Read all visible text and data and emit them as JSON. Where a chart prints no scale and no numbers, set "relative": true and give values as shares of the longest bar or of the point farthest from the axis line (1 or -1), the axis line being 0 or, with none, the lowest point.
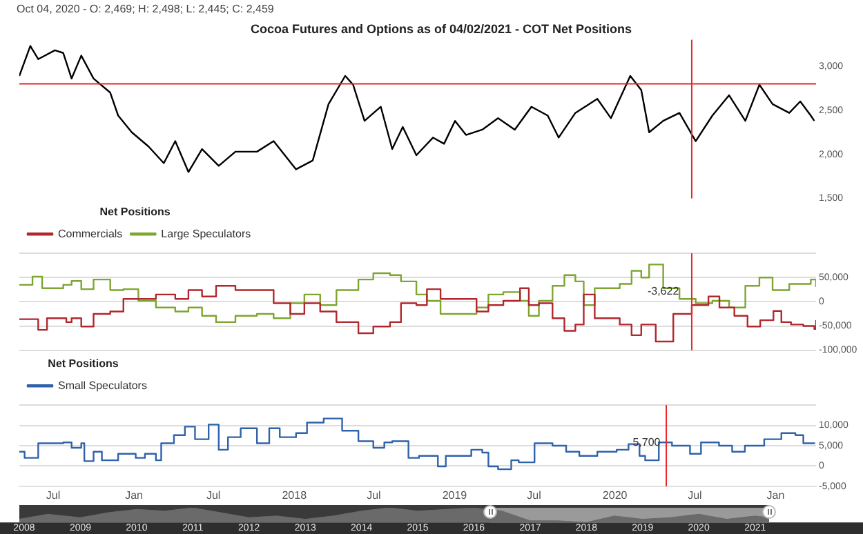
{
  "chart_data": [
    {
      "type": "line",
      "title": "Cocoa Futures and Options as of 04/02/2021 - COT Net Positions",
      "annotations": [
        "Oct 04, 2020 - O: 2,469; H: 2,498; L: 2,445; C: 2,459"
      ],
      "x": [
        "2016-04-15",
        "2016-05-10",
        "2016-05-28",
        "2016-07-05",
        "2016-07-24",
        "2016-08-12",
        "2016-09-03",
        "2016-10-01",
        "2016-11-08",
        "2016-11-26",
        "2016-12-27",
        "2017-02-03",
        "2017-03-10",
        "2017-04-05",
        "2017-05-05",
        "2017-06-05",
        "2017-07-13",
        "2017-08-20",
        "2017-10-08",
        "2017-11-15",
        "2018-01-05",
        "2018-02-12",
        "2018-03-20",
        "2018-04-27",
        "2018-05-15",
        "2018-06-10",
        "2018-07-17",
        "2018-08-12",
        "2018-09-05",
        "2018-10-06",
        "2018-11-13",
        "2018-12-08",
        "2019-01-02",
        "2019-01-27",
        "2019-03-05",
        "2019-04-10",
        "2019-05-18",
        "2019-06-25",
        "2019-08-01",
        "2019-08-26",
        "2019-10-03",
        "2019-11-22",
        "2019-12-23",
        "2020-02-05",
        "2020-03-01",
        "2020-03-19",
        "2020-04-20",
        "2020-05-27",
        "2020-07-03",
        "2020-08-10",
        "2020-09-17",
        "2020-10-24",
        "2020-11-25",
        "2020-12-25",
        "2021-02-01",
        "2021-02-26",
        "2021-03-22",
        "2021-03-30"
      ],
      "series": [
        {
          "color": "#000000",
          "values": [
            2890,
            3230,
            3080,
            3180,
            3150,
            2860,
            3120,
            2860,
            2700,
            2440,
            2250,
            2090,
            1900,
            2150,
            1800,
            2060,
            1870,
            2030,
            2030,
            2150,
            1830,
            1930,
            2570,
            2890,
            2790,
            2380,
            2540,
            2060,
            2310,
            1990,
            2190,
            2120,
            2380,
            2220,
            2280,
            2410,
            2280,
            2540,
            2440,
            2190,
            2470,
            2630,
            2410,
            2890,
            2730,
            2250,
            2380,
            2470,
            2150,
            2440,
            2670,
            2380,
            2790,
            2570,
            2470,
            2600,
            2440,
            2380
          ]
        }
      ],
      "xlim": [
        "2016-04-15",
        "2021-04-03"
      ],
      "ylim": [
        1500,
        3300
      ],
      "yticks": [
        {
          "value": 1500,
          "label": "1,500"
        },
        {
          "value": 2000,
          "label": "2,000"
        },
        {
          "value": 2500,
          "label": "2,500"
        },
        {
          "value": 3000,
          "label": "3,000"
        }
      ],
      "tick_labels": "y",
      "grid": false,
      "legend": false,
      "ref_lines": [
        {
          "axis": "y",
          "value": 2800,
          "color": "#e8262b"
        },
        {
          "axis": "x",
          "value": "2020-06-24",
          "color": "#e8262b"
        }
      ]
    },
    {
      "type": "step",
      "legend_title": "Net Positions",
      "legend": "top left",
      "grid": "y",
      "tick_labels": "y",
      "series": [
        {
          "name": "Commercials",
          "color": "#b1272d",
          "x": [
            "2016-04-15",
            "2016-05-28",
            "2016-06-17",
            "2016-07-31",
            "2016-08-12",
            "2016-09-03",
            "2016-10-01",
            "2016-11-08",
            "2016-12-08",
            "2017-01-11",
            "2017-02-20",
            "2017-04-05",
            "2017-05-05",
            "2017-06-05",
            "2017-07-07",
            "2017-08-20",
            "2017-10-08",
            "2017-11-15",
            "2017-12-23",
            "2018-01-24",
            "2018-03-01",
            "2018-04-07",
            "2018-05-27",
            "2018-06-30",
            "2018-08-07",
            "2018-09-01",
            "2018-10-06",
            "2018-10-30",
            "2018-11-30",
            "2019-02-20",
            "2019-03-19",
            "2019-04-22",
            "2019-05-30",
            "2019-06-19",
            "2019-07-12",
            "2019-08-12",
            "2019-09-08",
            "2019-10-03",
            "2019-10-22",
            "2019-11-16",
            "2020-01-12",
            "2020-02-08",
            "2020-03-01",
            "2020-04-03",
            "2020-05-13",
            "2020-06-24",
            "2020-08-01",
            "2020-08-26",
            "2020-09-29",
            "2020-10-29",
            "2020-11-27",
            "2020-12-27",
            "2021-01-14",
            "2021-02-05",
            "2021-03-05",
            "2021-03-30",
            "2021-04-03"
          ],
          "values": [
            -36000,
            -58000,
            -34000,
            -42000,
            -34000,
            -51000,
            -25000,
            -20000,
            6000,
            6000,
            15000,
            6000,
            24000,
            11000,
            33000,
            24000,
            24000,
            -3000,
            -25000,
            -3000,
            -20000,
            -42000,
            -65000,
            -51000,
            -42000,
            -3000,
            -7000,
            26000,
            6000,
            -20000,
            -7000,
            2000,
            28000,
            -7000,
            -3000,
            -34000,
            -60000,
            -47000,
            15000,
            -34000,
            -47000,
            -69000,
            -47000,
            -82000,
            -25000,
            -7000,
            11000,
            -12000,
            -29000,
            -51000,
            -38000,
            -19000,
            -42000,
            -47000,
            -50000,
            -56000,
            -38000
          ]
        },
        {
          "name": "Large Speculators",
          "color": "#7ea52f",
          "x": [
            "2016-04-15",
            "2016-05-15",
            "2016-06-06",
            "2016-07-24",
            "2016-08-12",
            "2016-09-03",
            "2016-10-01",
            "2016-11-08",
            "2016-12-08",
            "2017-01-11",
            "2017-02-20",
            "2017-04-05",
            "2017-05-05",
            "2017-06-05",
            "2017-07-07",
            "2017-08-20",
            "2017-10-08",
            "2017-11-15",
            "2017-12-23",
            "2018-01-24",
            "2018-03-01",
            "2018-04-07",
            "2018-05-27",
            "2018-06-30",
            "2018-08-07",
            "2018-09-01",
            "2018-10-06",
            "2018-10-30",
            "2018-11-30",
            "2019-02-20",
            "2019-03-19",
            "2019-04-22",
            "2019-05-30",
            "2019-06-19",
            "2019-07-12",
            "2019-08-12",
            "2019-09-08",
            "2019-10-03",
            "2019-10-22",
            "2019-11-16",
            "2020-01-12",
            "2020-02-08",
            "2020-03-01",
            "2020-03-19",
            "2020-04-20",
            "2020-05-27",
            "2020-07-03",
            "2020-08-10",
            "2020-09-17",
            "2020-10-24",
            "2020-11-25",
            "2020-12-25",
            "2021-02-01",
            "2021-03-22",
            "2021-04-03"
          ],
          "values": [
            35000,
            52000,
            28000,
            35000,
            43000,
            26000,
            46000,
            24000,
            26000,
            2000,
            -12000,
            -20000,
            -12000,
            -29000,
            -42000,
            -29000,
            -25000,
            -34000,
            -3000,
            15000,
            -7000,
            24000,
            46000,
            59000,
            55000,
            42000,
            15000,
            2000,
            -25000,
            -12000,
            15000,
            20000,
            2000,
            -29000,
            2000,
            33000,
            55000,
            42000,
            -7000,
            28000,
            37000,
            64000,
            50000,
            77000,
            28000,
            6000,
            -3000,
            2000,
            -12000,
            33000,
            50000,
            24000,
            37000,
            46000,
            31000
          ]
        }
      ],
      "xlim": [
        "2016-04-15",
        "2021-04-03"
      ],
      "ylim": [
        -100000,
        100000
      ],
      "yticks": [
        {
          "value": -100000,
          "label": "-100,000"
        },
        {
          "value": -50000,
          "label": "-50,000"
        },
        {
          "value": 0,
          "label": "0"
        },
        {
          "value": 50000,
          "label": "50,000"
        },
        {
          "value": 100000,
          "label": null
        }
      ],
      "annotations": [
        {
          "text": "-3,622",
          "x": "2020-04-20",
          "y": 21000
        }
      ],
      "ref_lines": [
        {
          "axis": "x",
          "value": "2020-06-24",
          "color": "#e8262b"
        }
      ]
    },
    {
      "type": "step",
      "legend_title": "Net Positions",
      "legend": "top left",
      "grid": "y",
      "x": [
        "2016-04-15",
        "2016-04-27",
        "2016-05-28",
        "2016-07-24",
        "2016-08-12",
        "2016-09-03",
        "2016-09-10",
        "2016-10-01",
        "2016-10-20",
        "2016-11-26",
        "2017-01-05",
        "2017-01-26",
        "2017-02-20",
        "2017-03-04",
        "2017-04-02",
        "2017-04-27",
        "2017-05-20",
        "2017-06-20",
        "2017-07-13",
        "2017-08-03",
        "2017-09-01",
        "2017-10-08",
        "2017-11-05",
        "2017-11-29",
        "2018-01-05",
        "2018-01-30",
        "2018-03-09",
        "2018-04-20",
        "2018-05-27",
        "2018-06-30",
        "2018-07-25",
        "2018-08-12",
        "2018-09-18",
        "2018-10-12",
        "2018-11-24",
        "2018-12-12",
        "2019-02-08",
        "2019-03-05",
        "2019-03-19",
        "2019-04-10",
        "2019-05-10",
        "2019-05-27",
        "2019-07-02",
        "2019-08-12",
        "2019-09-12",
        "2019-10-12",
        "2019-11-22",
        "2020-01-05",
        "2020-02-01",
        "2020-02-26",
        "2020-03-10",
        "2020-04-10",
        "2020-05-10",
        "2020-06-20",
        "2020-07-15",
        "2020-08-25",
        "2020-09-24",
        "2020-10-23",
        "2020-12-06",
        "2021-01-14",
        "2021-02-15",
        "2021-03-05",
        "2021-03-30"
      ],
      "series": [
        {
          "name": "Small Speculators",
          "color": "#2f62ab",
          "values": [
            3500,
            2000,
            5600,
            5800,
            4500,
            5600,
            1200,
            3500,
            1400,
            3000,
            2000,
            3000,
            1400,
            5600,
            7600,
            9700,
            6600,
            10200,
            4000,
            7100,
            9300,
            5600,
            9300,
            7100,
            8100,
            10700,
            11700,
            8700,
            6100,
            4500,
            5800,
            6100,
            2000,
            2500,
            -100,
            2500,
            4000,
            3300,
            -100,
            -800,
            1400,
            900,
            5600,
            5000,
            3500,
            2500,
            3500,
            4000,
            5400,
            2500,
            1400,
            5800,
            5000,
            3000,
            5800,
            5000,
            3500,
            5000,
            6600,
            8100,
            7600,
            5600,
            5800
          ]
        }
      ],
      "xlim": [
        "2016-04-15",
        "2021-04-03"
      ],
      "ylim": [
        -5000,
        15000
      ],
      "xticks": [
        {
          "value": "2016-07-01",
          "label": "Jul"
        },
        {
          "value": "2017-01-01",
          "label": "Jan"
        },
        {
          "value": "2017-07-01",
          "label": "Jul"
        },
        {
          "value": "2018-01-01",
          "label": "2018"
        },
        {
          "value": "2018-07-01",
          "label": "Jul"
        },
        {
          "value": "2019-01-01",
          "label": "2019"
        },
        {
          "value": "2019-07-01",
          "label": "Jul"
        },
        {
          "value": "2020-01-01",
          "label": "2020"
        },
        {
          "value": "2020-07-01",
          "label": "Jul"
        },
        {
          "value": "2021-01-01",
          "label": "Jan"
        }
      ],
      "yticks": [
        {
          "value": -5000,
          "label": "-5,000"
        },
        {
          "value": 0,
          "label": "0"
        },
        {
          "value": 5000,
          "label": "5,000"
        },
        {
          "value": 10000,
          "label": "10,000"
        },
        {
          "value": 15000,
          "label": null
        }
      ],
      "annotations": [
        {
          "text": "5,700",
          "x": "2020-03-13",
          "y": 5700
        }
      ],
      "ref_lines": [
        {
          "axis": "x",
          "value": "2020-04-27",
          "color": "#e8262b"
        }
      ]
    },
    {
      "type": "area",
      "relative": true,
      "tick_labels": "x",
      "legend": false,
      "grid": false,
      "x": [
        "2007-12-01",
        "2008-06-01",
        "2009-01-01",
        "2009-07-01",
        "2010-01-01",
        "2010-07-01",
        "2011-01-01",
        "2011-07-01",
        "2012-01-01",
        "2012-07-01",
        "2013-01-01",
        "2013-07-01",
        "2014-01-01",
        "2014-07-01",
        "2015-01-01",
        "2015-07-01",
        "2016-01-01",
        "2016-07-01",
        "2017-01-01",
        "2017-07-01",
        "2018-01-01",
        "2018-07-01",
        "2019-01-01",
        "2019-07-01",
        "2020-01-01",
        "2020-07-01",
        "2021-01-01",
        "2021-04-02"
      ],
      "series": [
        {
          "color": "#6a6a6a",
          "values": [
            0.22,
            0.56,
            0.33,
            0.67,
            0.89,
            0.78,
            1,
            0.67,
            0.33,
            0.44,
            0.22,
            0.44,
            0.78,
            1,
            0.78,
            0.89,
            1,
            0.78,
            0.11,
            0.11,
            0,
            0.44,
            0.22,
            0.33,
            0.56,
            0.22,
            0.44,
            0.33
          ]
        }
      ],
      "xlim": [
        "2007-12-01",
        "2021-04-02"
      ],
      "xticks": [
        {
          "value": "2008-01-01",
          "label": "2008"
        },
        {
          "value": "2009-01-01",
          "label": "2009"
        },
        {
          "value": "2010-01-01",
          "label": "2010"
        },
        {
          "value": "2011-01-01",
          "label": "2011"
        },
        {
          "value": "2012-01-01",
          "label": "2012"
        },
        {
          "value": "2013-01-01",
          "label": "2013"
        },
        {
          "value": "2014-01-01",
          "label": "2014"
        },
        {
          "value": "2015-01-01",
          "label": "2015"
        },
        {
          "value": "2016-01-01",
          "label": "2016"
        },
        {
          "value": "2017-01-01",
          "label": "2017"
        },
        {
          "value": "2018-01-01",
          "label": "2018"
        },
        {
          "value": "2019-01-01",
          "label": "2019"
        },
        {
          "value": "2020-01-01",
          "label": "2020"
        },
        {
          "value": "2021-01-01",
          "label": "2021"
        }
      ],
      "bands": [
        {
          "axis": "x",
          "from": "2016-04-15",
          "to": "2021-04-02",
          "color": "#9a9a9a"
        }
      ]
    }
  ]
}
